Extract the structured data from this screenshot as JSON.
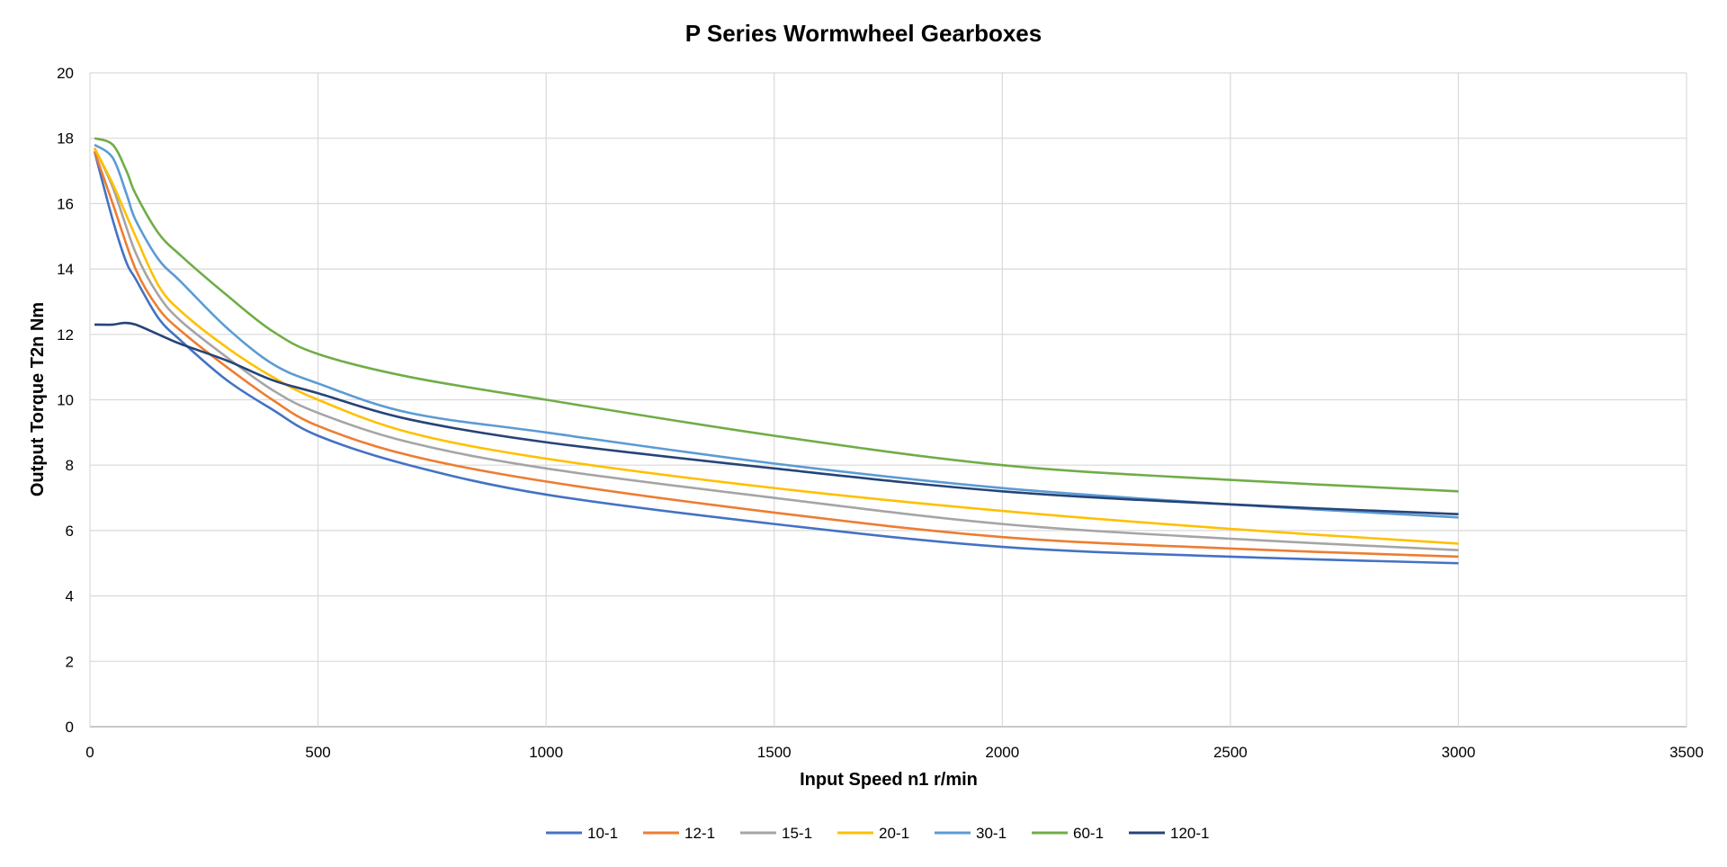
{
  "chart_data": {
    "type": "line",
    "title": "P Series Wormwheel Gearboxes",
    "xlabel": "Input Speed n1 r/min",
    "ylabel": "Output Torque T2n Nm",
    "xlim": [
      0,
      3500
    ],
    "ylim": [
      0,
      20
    ],
    "xticks": [
      0,
      500,
      1000,
      1500,
      2000,
      2500,
      3000,
      3500
    ],
    "yticks": [
      0,
      2,
      4,
      6,
      8,
      10,
      12,
      14,
      16,
      18,
      20
    ],
    "grid": true,
    "legend_position": "bottom",
    "series": [
      {
        "name": "10-1",
        "color": "#4472C4",
        "points": [
          [
            10,
            17.6
          ],
          [
            50,
            15.5
          ],
          [
            80,
            14.2
          ],
          [
            100,
            13.7
          ],
          [
            150,
            12.5
          ],
          [
            200,
            11.8
          ],
          [
            300,
            10.6
          ],
          [
            400,
            9.7
          ],
          [
            500,
            8.9
          ],
          [
            700,
            8.0
          ],
          [
            1000,
            7.1
          ],
          [
            1500,
            6.2
          ],
          [
            2000,
            5.5
          ],
          [
            2500,
            5.2
          ],
          [
            3000,
            5.0
          ]
        ]
      },
      {
        "name": "12-1",
        "color": "#ED7D31",
        "points": [
          [
            10,
            17.6
          ],
          [
            50,
            16.0
          ],
          [
            100,
            14.0
          ],
          [
            150,
            12.8
          ],
          [
            200,
            12.1
          ],
          [
            300,
            11.0
          ],
          [
            400,
            10.0
          ],
          [
            500,
            9.2
          ],
          [
            700,
            8.3
          ],
          [
            1000,
            7.5
          ],
          [
            1500,
            6.55
          ],
          [
            2000,
            5.8
          ],
          [
            2500,
            5.45
          ],
          [
            3000,
            5.2
          ]
        ]
      },
      {
        "name": "15-1",
        "color": "#A5A5A5",
        "points": [
          [
            10,
            17.7
          ],
          [
            50,
            16.5
          ],
          [
            100,
            14.5
          ],
          [
            150,
            13.2
          ],
          [
            200,
            12.4
          ],
          [
            300,
            11.3
          ],
          [
            400,
            10.3
          ],
          [
            500,
            9.6
          ],
          [
            700,
            8.7
          ],
          [
            1000,
            7.9
          ],
          [
            1500,
            7.0
          ],
          [
            2000,
            6.2
          ],
          [
            2500,
            5.75
          ],
          [
            3000,
            5.4
          ]
        ]
      },
      {
        "name": "20-1",
        "color": "#FFC000",
        "points": [
          [
            10,
            17.7
          ],
          [
            50,
            16.6
          ],
          [
            100,
            15.0
          ],
          [
            150,
            13.5
          ],
          [
            200,
            12.7
          ],
          [
            300,
            11.6
          ],
          [
            400,
            10.7
          ],
          [
            500,
            10.0
          ],
          [
            700,
            9.0
          ],
          [
            1000,
            8.2
          ],
          [
            1500,
            7.3
          ],
          [
            2000,
            6.6
          ],
          [
            2500,
            6.05
          ],
          [
            3000,
            5.6
          ]
        ]
      },
      {
        "name": "30-1",
        "color": "#5B9BD5",
        "points": [
          [
            10,
            17.8
          ],
          [
            50,
            17.4
          ],
          [
            80,
            16.3
          ],
          [
            100,
            15.5
          ],
          [
            150,
            14.3
          ],
          [
            200,
            13.6
          ],
          [
            300,
            12.2
          ],
          [
            400,
            11.1
          ],
          [
            500,
            10.5
          ],
          [
            700,
            9.6
          ],
          [
            1000,
            9.0
          ],
          [
            1500,
            8.05
          ],
          [
            2000,
            7.3
          ],
          [
            2500,
            6.8
          ],
          [
            3000,
            6.4
          ]
        ]
      },
      {
        "name": "60-1",
        "color": "#70AD47",
        "points": [
          [
            10,
            18.0
          ],
          [
            50,
            17.8
          ],
          [
            80,
            17.0
          ],
          [
            100,
            16.3
          ],
          [
            150,
            15.1
          ],
          [
            200,
            14.4
          ],
          [
            300,
            13.2
          ],
          [
            400,
            12.1
          ],
          [
            500,
            11.4
          ],
          [
            700,
            10.7
          ],
          [
            1000,
            10.0
          ],
          [
            1500,
            8.9
          ],
          [
            2000,
            8.0
          ],
          [
            2500,
            7.55
          ],
          [
            3000,
            7.2
          ]
        ]
      },
      {
        "name": "120-1",
        "color": "#264478",
        "points": [
          [
            10,
            12.3
          ],
          [
            50,
            12.3
          ],
          [
            75,
            12.35
          ],
          [
            100,
            12.3
          ],
          [
            150,
            12.0
          ],
          [
            200,
            11.7
          ],
          [
            300,
            11.2
          ],
          [
            400,
            10.6
          ],
          [
            500,
            10.2
          ],
          [
            700,
            9.4
          ],
          [
            1000,
            8.7
          ],
          [
            1500,
            7.9
          ],
          [
            2000,
            7.2
          ],
          [
            2500,
            6.8
          ],
          [
            3000,
            6.5
          ]
        ]
      }
    ]
  }
}
